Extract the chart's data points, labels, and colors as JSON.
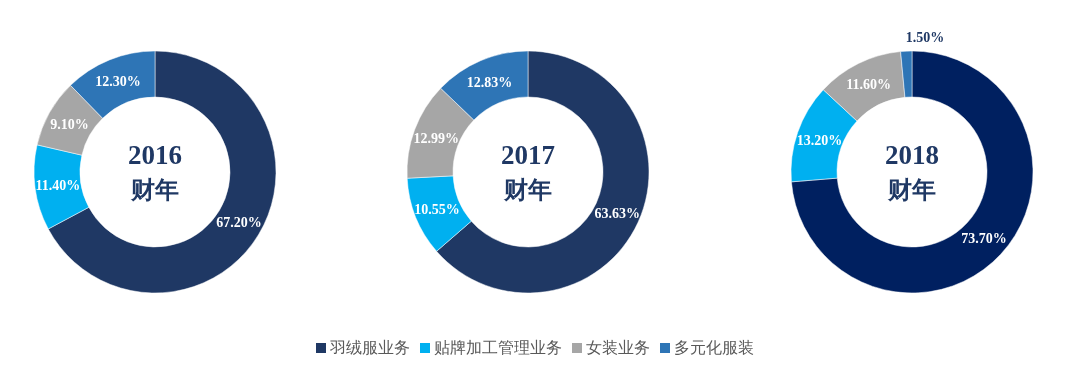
{
  "chart_data": [
    {
      "type": "donut",
      "title": "2016 财年",
      "categories": [
        "羽绒服业务",
        "贴牌加工管理业务",
        "女装业务",
        "多元化服装"
      ],
      "values": [
        67.2,
        11.4,
        9.1,
        12.3
      ],
      "colors": [
        "#1f3864",
        "#00b0f0",
        "#a6a6a6",
        "#2e75b6"
      ],
      "value_labels": [
        "67.20%",
        "11.40%",
        "9.10%",
        "12.30%"
      ],
      "legend": "bottom"
    },
    {
      "type": "donut",
      "title": "2017 财年",
      "categories": [
        null,
        null,
        null,
        null
      ],
      "values": [
        63.63,
        10.55,
        12.99,
        12.83
      ],
      "colors": [
        "#1f3864",
        "#00b0f0",
        "#a6a6a6",
        "#2e75b6"
      ],
      "value_labels": [
        "63.63%",
        "10.55%",
        "12.99%",
        "12.83%"
      ]
    },
    {
      "type": "donut",
      "title": "2018 财年",
      "categories": [
        null,
        null,
        null,
        null
      ],
      "values": [
        73.7,
        13.2,
        11.6,
        1.5
      ],
      "colors": [
        "#002060",
        "#00b0f0",
        "#a6a6a6",
        "#2e75b6"
      ],
      "value_labels": [
        "73.70%",
        "13.20%",
        "11.60%",
        "1.50%"
      ]
    }
  ]
}
